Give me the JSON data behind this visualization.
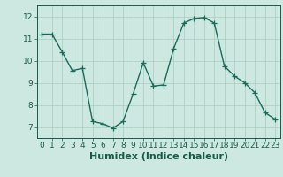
{
  "x": [
    0,
    1,
    2,
    3,
    4,
    5,
    6,
    7,
    8,
    9,
    10,
    11,
    12,
    13,
    14,
    15,
    16,
    17,
    18,
    19,
    20,
    21,
    22,
    23
  ],
  "y": [
    11.2,
    11.2,
    10.4,
    9.55,
    9.65,
    7.25,
    7.15,
    6.95,
    7.25,
    8.5,
    9.9,
    8.85,
    8.9,
    10.55,
    11.7,
    11.9,
    11.95,
    11.7,
    9.75,
    9.3,
    9.0,
    8.55,
    7.65,
    7.35
  ],
  "line_color": "#1a6b5a",
  "marker": "+",
  "markersize": 4,
  "linewidth": 1.0,
  "bg_color": "#cce8e0",
  "grid_color": "#aaccbb",
  "xlabel": "Humidex (Indice chaleur)",
  "xlabel_fontsize": 8,
  "ylim": [
    6.5,
    12.5
  ],
  "xlim": [
    -0.5,
    23.5
  ],
  "yticks": [
    7,
    8,
    9,
    10,
    11,
    12
  ],
  "xtick_labels": [
    "0",
    "1",
    "2",
    "3",
    "4",
    "5",
    "6",
    "7",
    "8",
    "9",
    "10",
    "11",
    "12",
    "13",
    "14",
    "15",
    "16",
    "17",
    "18",
    "19",
    "20",
    "21",
    "22",
    "23"
  ],
  "tick_fontsize": 6.5,
  "label_color": "#1a5a4a"
}
